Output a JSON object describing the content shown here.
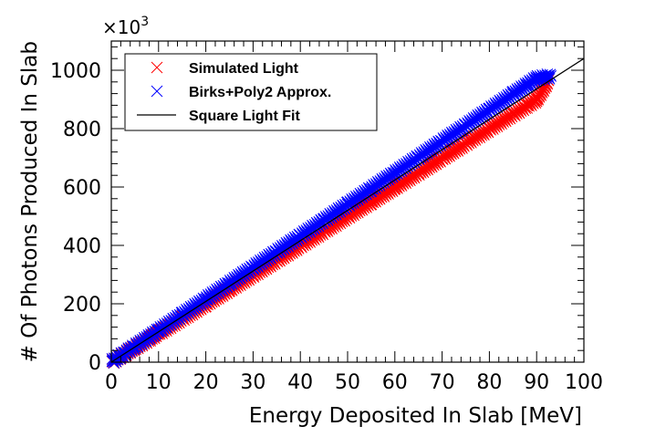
{
  "chart_data": {
    "type": "scatter",
    "title": "",
    "xlabel": "Energy Deposited In Slab [MeV]",
    "ylabel": "# Of Photons Produced In Slab",
    "y_multiplier": "×10",
    "y_multiplier_exp": "3",
    "xlim": [
      0,
      100
    ],
    "ylim": [
      0,
      1100
    ],
    "xticks": [
      "0",
      "10",
      "20",
      "30",
      "40",
      "50",
      "60",
      "70",
      "80",
      "90",
      "100"
    ],
    "yticks": [
      "0",
      "200",
      "400",
      "600",
      "800",
      "1000"
    ],
    "grid": false,
    "legend_position": "top-left",
    "series": [
      {
        "name": "Simulated Light",
        "marker": "x",
        "color": "#ff0000",
        "x": [
          0.2,
          1,
          2,
          3,
          5,
          8,
          10,
          15,
          20,
          25,
          30,
          35,
          40,
          45,
          50,
          55,
          60,
          65,
          70,
          75,
          80,
          85,
          88,
          90,
          92.5
        ],
        "y": [
          2,
          10,
          20,
          30,
          49,
          79,
          99,
          149,
          199,
          249,
          299,
          349,
          399,
          449,
          499,
          549,
          599,
          649,
          699,
          749,
          799,
          849,
          879,
          899,
          965
        ]
      },
      {
        "name": "Birks+Poly2 Approx.",
        "marker": "x",
        "color": "#0000ff",
        "x": [
          0.2,
          1,
          2,
          3,
          5,
          8,
          10,
          15,
          20,
          25,
          30,
          35,
          40,
          45,
          50,
          55,
          60,
          65,
          70,
          75,
          80,
          85,
          88,
          90,
          93
        ],
        "y": [
          3,
          11,
          22,
          33,
          54,
          86,
          108,
          162,
          216,
          270,
          324,
          378,
          432,
          486,
          540,
          594,
          648,
          702,
          756,
          810,
          864,
          918,
          950,
          972,
          980
        ]
      },
      {
        "name": "Square Light Fit",
        "marker": "line",
        "color": "#000000",
        "x": [
          0,
          100
        ],
        "y": [
          0,
          1040
        ]
      }
    ]
  }
}
